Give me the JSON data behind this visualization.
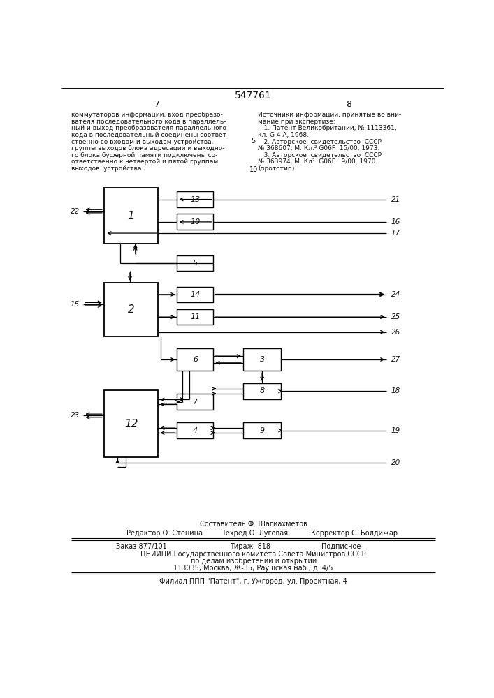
{
  "title": "547761",
  "page_left": "7",
  "page_right": "8",
  "bg_color": "#ffffff",
  "text_color": "#111111",
  "left_text_lines": [
    "коммутаторов информации, вход преобразо-",
    "вателя последовательного кода в параллель-",
    "ный и выход преобразователя параллельного",
    "кода в последовательный соединены соответ-",
    "ственно со входом и выходом устройства,",
    "группы выходов блока адресации и выходно-",
    "го блока буферной памяти подключены со-",
    "ответственно к четвертой и пятой группам",
    "выходов  устройства."
  ],
  "right_text_lines": [
    "Источники информации, принятые во вни-",
    "мание при экспертизе:",
    "   1. Патент Великобритании, № 1113361,",
    "кл. G 4 А, 1968.",
    "   2. Авторское  свидетельство  СССР",
    "№ 368607, М. Кл.² G06F  15/00, 1973.",
    "   3. Авторское  свидетельство  СССР",
    "№ 363974, М. Кл²  G06F   9/00, 1970.",
    "(прототип)."
  ],
  "line_number_5": "5",
  "line_number_10": "10",
  "footer_text1": "Составитель Ф. Шагиахметов",
  "footer_text2_left": "Редактор О. Стенина",
  "footer_text2_mid": "Техред О. Луговая",
  "footer_text2_right": "Корректор С. Болдижар",
  "footer_text3_left": "Заказ 877/101",
  "footer_text3_mid": "Тираж  818",
  "footer_text3_right": "Подписное",
  "footer_text4": "ЦНИИПИ Государственного комитета Совета Министров СССР",
  "footer_text5": "по делам изобретений и открытий",
  "footer_text6": "113035, Москва, Ж-35, Раушская наб., д. 4/5",
  "footer_text7": "Филиал ППП \"Патент\", г. Ужгород, ул. Проектная, 4"
}
